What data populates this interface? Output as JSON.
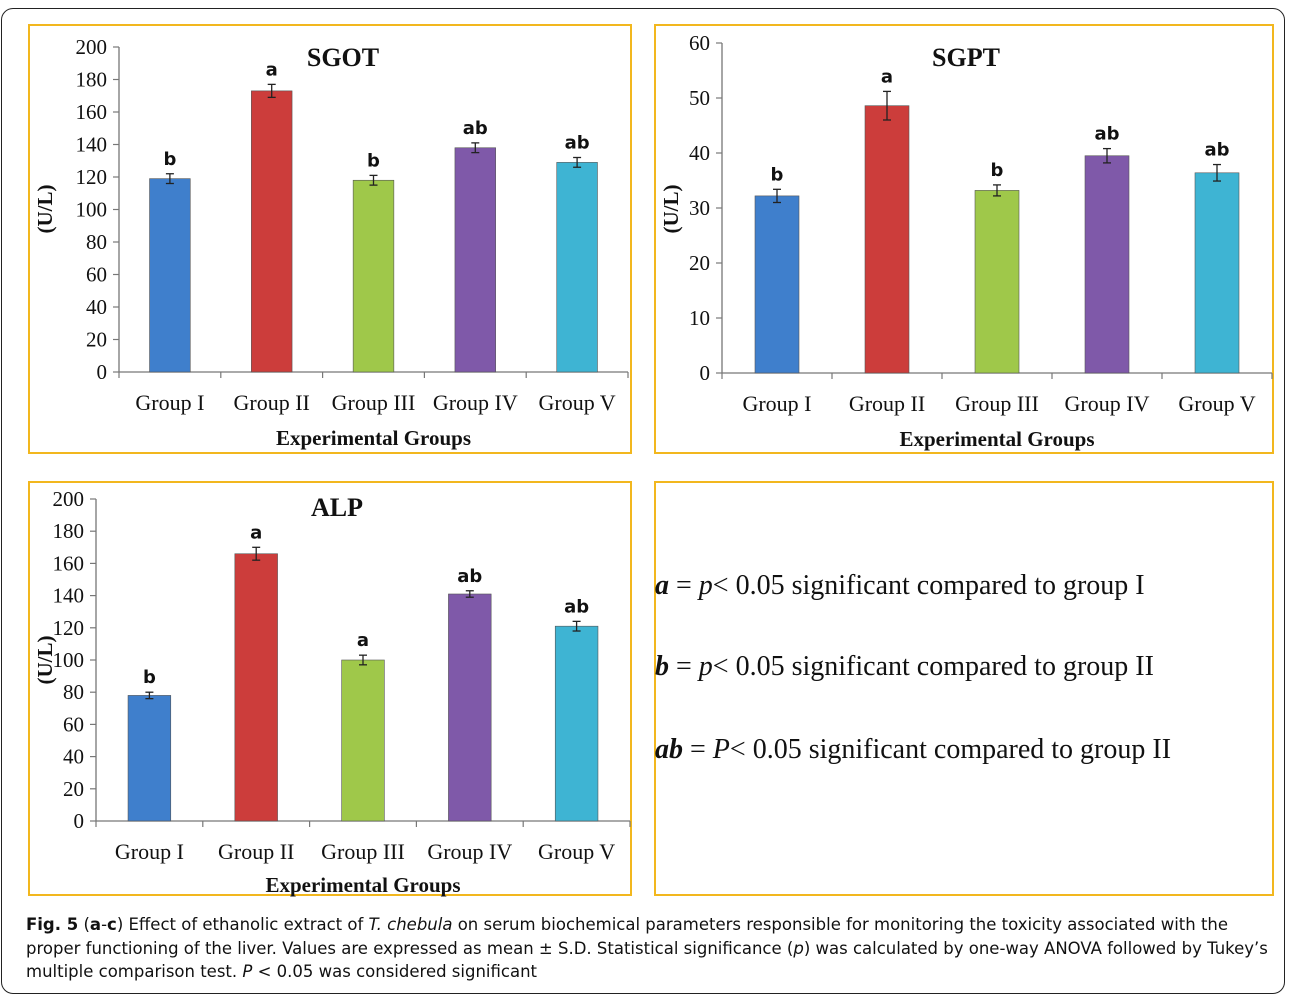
{
  "chart_data": [
    {
      "type": "bar",
      "title": "SGOT",
      "xlabel": "Experimental Groups",
      "ylabel": "(U/L)",
      "ylim": [
        0,
        200
      ],
      "yticks": [
        0,
        20,
        40,
        60,
        80,
        100,
        120,
        140,
        160,
        180,
        200
      ],
      "categories": [
        "Group I",
        "Group II",
        "Group III",
        "Group IV",
        "Group V"
      ],
      "values": [
        119,
        173,
        118,
        138,
        129
      ],
      "errors": [
        3,
        4,
        3,
        3,
        3
      ],
      "annotations": [
        "b",
        "a",
        "b",
        "ab",
        "ab"
      ],
      "colors": [
        "#3f7fcc",
        "#cc3d3b",
        "#9fc84a",
        "#7f59a9",
        "#3eb4d3"
      ],
      "grid": false
    },
    {
      "type": "bar",
      "title": "SGPT",
      "xlabel": "Experimental Groups",
      "ylabel": "(U/L)",
      "ylim": [
        0,
        60
      ],
      "yticks": [
        0,
        10,
        20,
        30,
        40,
        50,
        60
      ],
      "categories": [
        "Group I",
        "Group II",
        "Group III",
        "Group IV",
        "Group V"
      ],
      "values": [
        32.2,
        48.6,
        33.2,
        39.5,
        36.4
      ],
      "errors": [
        1.2,
        2.6,
        1.0,
        1.3,
        1.5
      ],
      "annotations": [
        "b",
        "a",
        "b",
        "ab",
        "ab"
      ],
      "colors": [
        "#3f7fcc",
        "#cc3d3b",
        "#9fc84a",
        "#7f59a9",
        "#3eb4d3"
      ],
      "grid": false
    },
    {
      "type": "bar",
      "title": "ALP",
      "xlabel": "Experimental Groups",
      "ylabel": "(U/L)",
      "ylim": [
        0,
        200
      ],
      "yticks": [
        0,
        20,
        40,
        60,
        80,
        100,
        120,
        140,
        160,
        180,
        200
      ],
      "categories": [
        "Group I",
        "Group II",
        "Group III",
        "Group IV",
        "Group V"
      ],
      "values": [
        78,
        166,
        100,
        141,
        121
      ],
      "errors": [
        2,
        4,
        3,
        2,
        3
      ],
      "annotations": [
        "b",
        "a",
        "a",
        "ab",
        "ab"
      ],
      "colors": [
        "#3f7fcc",
        "#cc3d3b",
        "#9fc84a",
        "#7f59a9",
        "#3eb4d3"
      ],
      "grid": false
    }
  ],
  "legend": [
    {
      "key": "a",
      "eq": " = ",
      "p": "p",
      "text": "< 0.05 significant compared to group I"
    },
    {
      "key": "b",
      "eq": " = ",
      "p": "p",
      "text": "< 0.05 significant compared to group II"
    },
    {
      "key": "ab",
      "eq": " = ",
      "p": "P",
      "text": "< 0.05 significant compared to group II"
    }
  ],
  "caption": {
    "fig_label": "Fig. 5",
    "open": " (",
    "panels_a": "a",
    "dash": "-",
    "panels_c": "c",
    "close": ") Effect of ethanolic extract of ",
    "species": "T. chebula",
    "body1": " on serum biochemical parameters responsible for monitoring the toxicity associated with the proper functioning of the liver. Values are expressed as mean ± S.D. Statistical significance (",
    "p_italic": "p",
    "body2": ") was calculated by one-way ANOVA followed by Tukey’s multiple comparison test. ",
    "P_italic": "P",
    "body3": " < 0.05 was considered significant"
  }
}
